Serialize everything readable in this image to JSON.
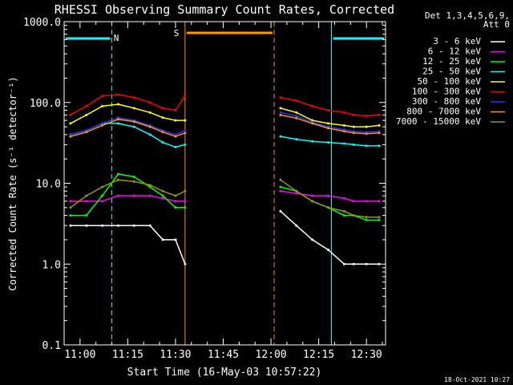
{
  "chart_data": {
    "type": "line",
    "title": "RHESSI Observing Summary Count Rates, Corrected",
    "xlabel": "Start Time (16-May-03 10:57:22)",
    "ylabel": "Corrected Count Rate (s⁻¹ detector⁻¹)",
    "footer_date": "18-Oct-2021 10:27",
    "y_scale": "log",
    "ylim": [
      0.1,
      1000.0
    ],
    "xlim": [
      "10:55",
      "12:36"
    ],
    "y_ticks": [
      "1000.0",
      "100.0",
      "10.0",
      "1.0",
      "0.1"
    ],
    "x_ticks": [
      "11:00",
      "11:15",
      "11:30",
      "11:45",
      "12:00",
      "12:15",
      "12:30"
    ],
    "legend_header": [
      "Det 1,3,4,5,6,9,",
      "Att 0"
    ],
    "legend_position": "right",
    "series": [
      {
        "name": "3 - 6 keV",
        "color": "#ffffff",
        "x": [
          "10:57",
          "11:02",
          "11:07",
          "11:12",
          "11:17",
          "11:22",
          "11:26",
          "11:30",
          "11:33",
          "12:03",
          "12:08",
          "12:13",
          "12:18",
          "12:23",
          "12:26",
          "12:30",
          "12:34"
        ],
        "values": [
          3.0,
          3.0,
          3.0,
          3.0,
          3.0,
          3.0,
          2.0,
          2.0,
          1.0,
          4.5,
          3.0,
          2.0,
          1.5,
          1.0,
          1.0,
          1.0,
          1.0
        ]
      },
      {
        "name": "6 - 12 keV",
        "color": "#ff00ff",
        "x": [
          "10:57",
          "11:02",
          "11:07",
          "11:12",
          "11:17",
          "11:22",
          "11:26",
          "11:30",
          "11:33",
          "12:03",
          "12:08",
          "12:13",
          "12:18",
          "12:23",
          "12:26",
          "12:30",
          "12:34"
        ],
        "values": [
          6.0,
          6.0,
          6.0,
          7.0,
          7.0,
          7.0,
          6.5,
          6.0,
          6.0,
          8.0,
          7.5,
          7.0,
          7.0,
          6.5,
          6.0,
          6.0,
          6.0
        ]
      },
      {
        "name": "12 - 25 keV",
        "color": "#00ff00",
        "x": [
          "10:57",
          "11:02",
          "11:07",
          "11:12",
          "11:17",
          "11:22",
          "11:26",
          "11:30",
          "11:33",
          "12:03",
          "12:08",
          "12:13",
          "12:18",
          "12:23",
          "12:26",
          "12:30",
          "12:34"
        ],
        "values": [
          4.0,
          4.0,
          7.0,
          13.0,
          12.0,
          9.0,
          7.0,
          5.0,
          5.0,
          9.0,
          8.0,
          6.0,
          5.0,
          4.0,
          4.0,
          3.5,
          3.5
        ]
      },
      {
        "name": "25 - 50 keV",
        "color": "#00ffff",
        "x": [
          "10:57",
          "11:02",
          "11:07",
          "11:12",
          "11:17",
          "11:22",
          "11:26",
          "11:30",
          "11:33",
          "12:03",
          "12:08",
          "12:13",
          "12:18",
          "12:23",
          "12:26",
          "12:30",
          "12:34"
        ],
        "values": [
          40.0,
          45.0,
          55.0,
          55.0,
          50.0,
          40.0,
          32.0,
          28.0,
          30.0,
          38.0,
          35.0,
          33.0,
          32.0,
          31.0,
          30.0,
          29.0,
          29.0
        ]
      },
      {
        "name": "50 - 100 keV",
        "color": "#ffff00",
        "x": [
          "10:57",
          "11:02",
          "11:07",
          "11:12",
          "11:17",
          "11:22",
          "11:26",
          "11:30",
          "11:33",
          "12:03",
          "12:08",
          "12:13",
          "12:18",
          "12:23",
          "12:26",
          "12:30",
          "12:34"
        ],
        "values": [
          55.0,
          70.0,
          90.0,
          95.0,
          85.0,
          75.0,
          65.0,
          60.0,
          60.0,
          85.0,
          75.0,
          60.0,
          55.0,
          52.0,
          50.0,
          50.0,
          52.0
        ]
      },
      {
        "name": "100 - 300 keV",
        "color": "#ff0000",
        "x": [
          "10:57",
          "11:02",
          "11:07",
          "11:12",
          "11:17",
          "11:22",
          "11:26",
          "11:30",
          "11:33",
          "12:03",
          "12:08",
          "12:13",
          "12:18",
          "12:23",
          "12:26",
          "12:30",
          "12:34"
        ],
        "values": [
          70.0,
          90.0,
          120.0,
          125.0,
          115.0,
          100.0,
          85.0,
          80.0,
          120.0,
          115.0,
          105.0,
          90.0,
          80.0,
          75.0,
          70.0,
          68.0,
          70.0
        ]
      },
      {
        "name": "300 - 800 keV",
        "color": "#3030ff",
        "x": [
          "10:57",
          "11:02",
          "11:07",
          "11:12",
          "11:17",
          "11:22",
          "11:26",
          "11:30",
          "11:33",
          "12:03",
          "12:08",
          "12:13",
          "12:18",
          "12:23",
          "12:26",
          "12:30",
          "12:34"
        ],
        "values": [
          40.0,
          45.0,
          55.0,
          65.0,
          60.0,
          52.0,
          45.0,
          40.0,
          45.0,
          75.0,
          68.0,
          57.0,
          50.0,
          46.0,
          44.0,
          43.0,
          44.0
        ]
      },
      {
        "name": "800 - 7000 keV",
        "color": "#ff9900",
        "x": [
          "10:57",
          "11:02",
          "11:07",
          "11:12",
          "11:17",
          "11:22",
          "11:26",
          "11:30",
          "11:33",
          "12:03",
          "12:08",
          "12:13",
          "12:18",
          "12:23",
          "12:26",
          "12:30",
          "12:34"
        ],
        "values": [
          38.0,
          43.0,
          52.0,
          62.0,
          58.0,
          50.0,
          43.0,
          38.0,
          42.0,
          70.0,
          64.0,
          55.0,
          48.0,
          44.0,
          42.0,
          41.0,
          42.0
        ]
      },
      {
        "name": "7000 - 15000 keV",
        "color": "#999900",
        "x": [
          "10:57",
          "11:02",
          "11:07",
          "11:12",
          "11:17",
          "11:22",
          "11:26",
          "11:30",
          "11:33",
          "12:03",
          "12:08",
          "12:13",
          "12:18",
          "12:23",
          "12:26",
          "12:30",
          "12:34"
        ],
        "values": [
          5.0,
          7.0,
          9.0,
          11.0,
          10.5,
          9.5,
          8.0,
          7.0,
          8.0,
          11.0,
          8.0,
          6.0,
          5.0,
          4.5,
          4.0,
          3.8,
          3.8
        ]
      }
    ],
    "markers": [
      {
        "label": "N",
        "color": "#00ffff"
      },
      {
        "label": "S",
        "color": "#ff9900"
      },
      {
        "label": "",
        "color": "#00ffff"
      }
    ],
    "night_intervals": [
      {
        "start": "10:55",
        "end": "11:10",
        "color": "#00ffff"
      },
      {
        "start": "12:19",
        "end": "12:36",
        "color": "#00ffff"
      }
    ],
    "saa_intervals": [
      {
        "start": "11:33",
        "end": "12:01",
        "color": "#ff9900"
      }
    ]
  }
}
